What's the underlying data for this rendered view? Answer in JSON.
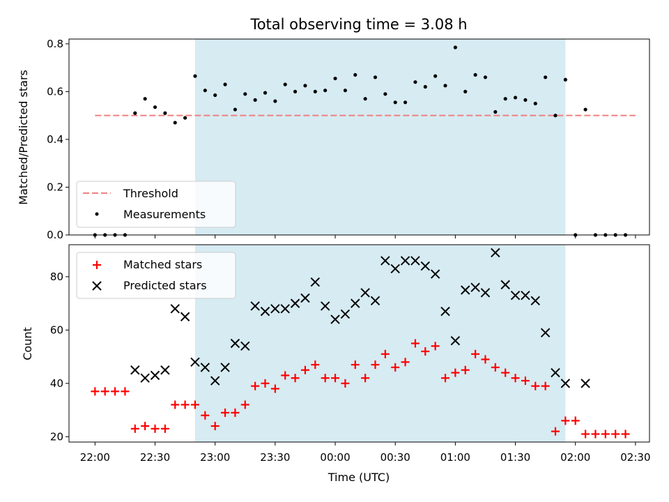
{
  "chart_data": [
    {
      "type": "scatter",
      "title": "Total observing time = 3.08 h",
      "ylabel": "Matched/Predicted stars",
      "xlabel": "",
      "ylim": [
        0,
        0.82
      ],
      "yticks": [
        "0.0",
        "0.2",
        "0.4",
        "0.6",
        "0.8"
      ],
      "ytick_values": [
        0,
        0.2,
        0.4,
        0.6,
        0.8
      ],
      "grid": false,
      "legend_position": "lower-left",
      "threshold": {
        "name": "Threshold",
        "value": 0.5,
        "color": "#f08080",
        "x_range": [
          "22:00",
          "02:30"
        ]
      },
      "highlight_span": {
        "start": "22:50",
        "end": "01:55",
        "color": "#add8e6"
      },
      "series": [
        {
          "name": "Measurements",
          "color": "#000000",
          "x": [
            "22:00",
            "22:05",
            "22:10",
            "22:15",
            "22:20",
            "22:25",
            "22:30",
            "22:35",
            "22:40",
            "22:45",
            "22:50",
            "22:55",
            "23:00",
            "23:05",
            "23:10",
            "23:15",
            "23:20",
            "23:25",
            "23:30",
            "23:35",
            "23:40",
            "23:45",
            "23:50",
            "23:55",
            "00:00",
            "00:05",
            "00:10",
            "00:15",
            "00:20",
            "00:25",
            "00:30",
            "00:35",
            "00:40",
            "00:45",
            "00:50",
            "00:55",
            "01:00",
            "01:05",
            "01:10",
            "01:15",
            "01:20",
            "01:25",
            "01:30",
            "01:35",
            "01:40",
            "01:45",
            "01:50",
            "01:55",
            "02:00",
            "02:05",
            "02:10",
            "02:15",
            "02:20",
            "02:25"
          ],
          "y": [
            0,
            0,
            0,
            0,
            0.51,
            0.57,
            0.535,
            0.51,
            0.47,
            0.49,
            0.665,
            0.605,
            0.585,
            0.63,
            0.525,
            0.59,
            0.565,
            0.595,
            0.56,
            0.63,
            0.6,
            0.625,
            0.6,
            0.605,
            0.655,
            0.605,
            0.67,
            0.57,
            0.66,
            0.59,
            0.555,
            0.555,
            0.64,
            0.62,
            0.665,
            0.625,
            0.785,
            0.6,
            0.67,
            0.66,
            0.515,
            0.57,
            0.575,
            0.565,
            0.55,
            0.66,
            0.5,
            0.65,
            0,
            0.525,
            0,
            0,
            0,
            0
          ]
        }
      ]
    },
    {
      "type": "scatter",
      "title": "",
      "ylabel": "Count",
      "xlabel": "Time (UTC)",
      "ylim": [
        18,
        92
      ],
      "yticks": [
        "20",
        "40",
        "60",
        "80"
      ],
      "ytick_values": [
        20,
        40,
        60,
        80
      ],
      "x_axis": {
        "range": [
          "21:47",
          "02:37"
        ],
        "ticks": [
          "22:00",
          "22:30",
          "23:00",
          "23:30",
          "00:00",
          "00:30",
          "01:00",
          "01:30",
          "02:00",
          "02:30"
        ]
      },
      "grid": false,
      "legend_position": "upper-left",
      "highlight_span": {
        "start": "22:50",
        "end": "01:55",
        "color": "#add8e6"
      },
      "series": [
        {
          "name": "Matched stars",
          "color": "#ff0000",
          "marker": "plus",
          "x": [
            "22:00",
            "22:05",
            "22:10",
            "22:15",
            "22:20",
            "22:25",
            "22:30",
            "22:35",
            "22:40",
            "22:45",
            "22:50",
            "22:55",
            "23:00",
            "23:05",
            "23:10",
            "23:15",
            "23:20",
            "23:25",
            "23:30",
            "23:35",
            "23:40",
            "23:45",
            "23:50",
            "23:55",
            "00:00",
            "00:05",
            "00:10",
            "00:15",
            "00:20",
            "00:25",
            "00:30",
            "00:35",
            "00:40",
            "00:45",
            "00:50",
            "00:55",
            "01:00",
            "01:05",
            "01:10",
            "01:15",
            "01:20",
            "01:25",
            "01:30",
            "01:35",
            "01:40",
            "01:45",
            "01:50",
            "01:55",
            "02:00",
            "02:05",
            "02:10",
            "02:15",
            "02:20",
            "02:25"
          ],
          "y": [
            37,
            37,
            37,
            37,
            23,
            24,
            23,
            23,
            32,
            32,
            32,
            28,
            24,
            29,
            29,
            32,
            39,
            40,
            38,
            43,
            42,
            45,
            47,
            42,
            42,
            40,
            47,
            42,
            47,
            51,
            46,
            48,
            55,
            52,
            54,
            42,
            44,
            45,
            51,
            49,
            46,
            44,
            42,
            41,
            39,
            39,
            22,
            26,
            26,
            21,
            21,
            21,
            21,
            21
          ]
        },
        {
          "name": "Predicted stars",
          "color": "#000000",
          "marker": "x",
          "x": [
            "22:20",
            "22:25",
            "22:30",
            "22:35",
            "22:40",
            "22:45",
            "22:50",
            "22:55",
            "23:00",
            "23:05",
            "23:10",
            "23:15",
            "23:20",
            "23:25",
            "23:30",
            "23:35",
            "23:40",
            "23:45",
            "23:50",
            "23:55",
            "00:00",
            "00:05",
            "00:10",
            "00:15",
            "00:20",
            "00:25",
            "00:30",
            "00:35",
            "00:40",
            "00:45",
            "00:50",
            "00:55",
            "01:00",
            "01:05",
            "01:10",
            "01:15",
            "01:20",
            "01:25",
            "01:30",
            "01:35",
            "01:40",
            "01:45",
            "01:50",
            "01:55",
            "02:05"
          ],
          "y": [
            45,
            42,
            43,
            45,
            68,
            65,
            48,
            46,
            41,
            46,
            55,
            54,
            69,
            67,
            68,
            68,
            70,
            72,
            78,
            69,
            64,
            66,
            70,
            74,
            71,
            86,
            83,
            86,
            86,
            84,
            81,
            67,
            56,
            75,
            76,
            74,
            89,
            77,
            73,
            73,
            71,
            59,
            44,
            40,
            40
          ]
        }
      ]
    }
  ]
}
